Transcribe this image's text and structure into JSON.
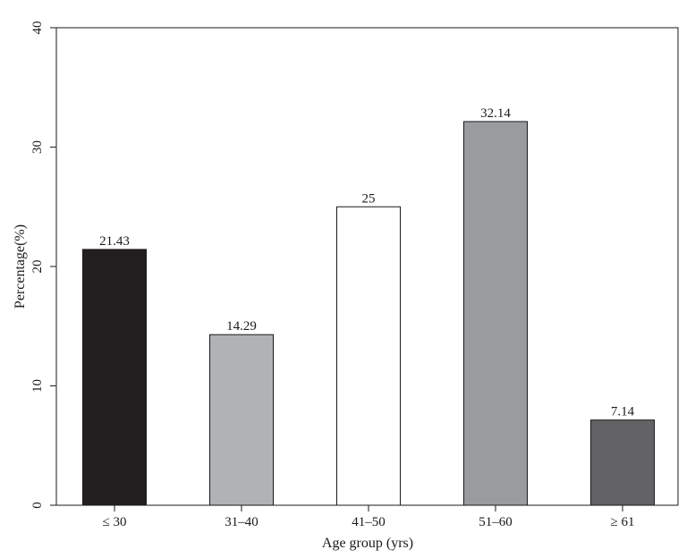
{
  "chart_data": {
    "type": "bar",
    "title": "",
    "xlabel": "Age group (yrs)",
    "ylabel": "Percentage(%)",
    "categories": [
      "≤ 30",
      "31–40",
      "41–50",
      "51–60",
      "≥ 61"
    ],
    "values": [
      21.43,
      14.29,
      25,
      32.14,
      7.14
    ],
    "data_labels": [
      "21.43",
      "14.29",
      "25",
      "32.14",
      "7.14"
    ],
    "bar_colors": [
      "#231f20",
      "#b1b2b4",
      "#ffffff",
      "#9a9b9f",
      "#636366"
    ],
    "ylim": [
      0,
      40
    ],
    "yticks": [
      0,
      10,
      20,
      30,
      40
    ],
    "grid": false,
    "legend": "none"
  }
}
